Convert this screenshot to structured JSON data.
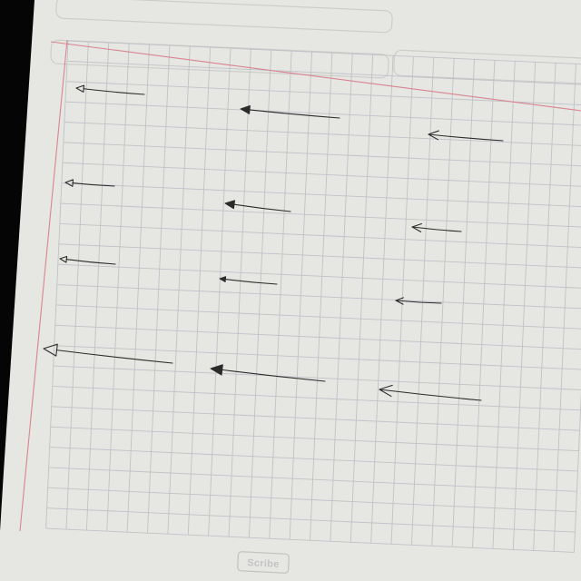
{
  "paper": {
    "background": "#e6e6e3",
    "grid_color": "#bfc3c7",
    "margin_line_color": "#d9848e",
    "header_box_color": "#cdcdca",
    "brand_label": "Scribe",
    "grid_columns": 26,
    "grid_rows": 24
  },
  "photo": {
    "background": "#050505"
  },
  "drawings": {
    "ink_color": "#2b2b2b",
    "arrows": [
      {
        "name": "arrow-r1-c1",
        "head": "open"
      },
      {
        "name": "arrow-r1-c2",
        "head": "filled"
      },
      {
        "name": "arrow-r1-c3",
        "head": "line"
      },
      {
        "name": "arrow-r2-c1",
        "head": "open"
      },
      {
        "name": "arrow-r2-c2",
        "head": "filled"
      },
      {
        "name": "arrow-r2-c3",
        "head": "line"
      },
      {
        "name": "arrow-r3-c1",
        "head": "open"
      },
      {
        "name": "arrow-r3-c2",
        "head": "filled"
      },
      {
        "name": "arrow-r3-c3",
        "head": "line"
      },
      {
        "name": "arrow-r4-c1",
        "head": "open"
      },
      {
        "name": "arrow-r4-c2",
        "head": "filled"
      },
      {
        "name": "arrow-r4-c3",
        "head": "line"
      }
    ]
  }
}
